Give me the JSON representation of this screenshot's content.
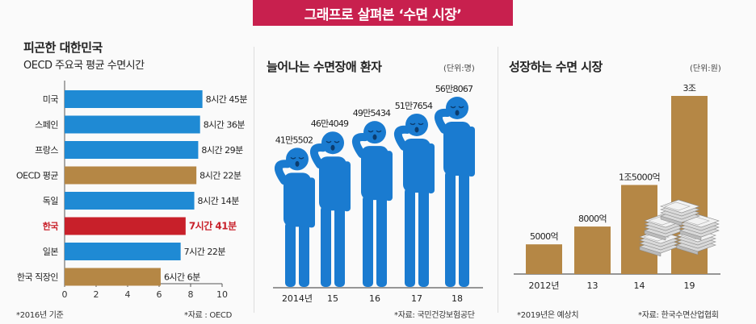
{
  "banner": {
    "title": "그래프로 살펴본 ‘수면 시장’"
  },
  "panels": {
    "left": {
      "title": "피곤한 대한민국",
      "subtitle": "OECD 주요국 평균 수면시간",
      "note": "*2016년 기준",
      "source": "*자료 : OECD"
    },
    "middle": {
      "title": "늘어나는 수면장애 환자",
      "unit": "(단위:명)",
      "source": "*자료: 국민건강보험공단"
    },
    "right": {
      "title": "성장하는 수면 시장",
      "unit": "(단위:원)",
      "note": "*2019년은 예상치",
      "source": "*자료: 한국수면산업협회"
    }
  },
  "colors": {
    "blue": "#1f8ad4",
    "gold": "#b58745",
    "red": "#c8202a",
    "banner": "#c8204e",
    "figure": "#1a7bd0"
  },
  "chart_data": [
    {
      "type": "bar",
      "orientation": "horizontal",
      "title": "피곤한 대한민국",
      "subtitle": "OECD 주요국 평균 수면시간",
      "categories": [
        "미국",
        "스페인",
        "프랑스",
        "OECD 평균",
        "독일",
        "한국",
        "일본",
        "한국 직장인"
      ],
      "values": [
        8.75,
        8.6,
        8.483,
        8.367,
        8.233,
        7.683,
        7.367,
        6.1
      ],
      "labels": [
        "8시간 45분",
        "8시간 36분",
        "8시간 29분",
        "8시간 22분",
        "8시간 14분",
        "7시간 41분",
        "7시간 22분",
        "6시간 6분"
      ],
      "bar_colors": [
        "blue",
        "blue",
        "blue",
        "gold",
        "blue",
        "red",
        "blue",
        "gold"
      ],
      "xlim": [
        0,
        10
      ],
      "xticks": [
        "0",
        "2",
        "4",
        "6",
        "8",
        "10"
      ]
    },
    {
      "type": "bar",
      "title": "늘어나는 수면장애 환자",
      "unit": "(단위:명)",
      "categories": [
        "2014년",
        "15",
        "16",
        "17",
        "18"
      ],
      "values": [
        415502,
        464049,
        495434,
        517654,
        568067
      ],
      "labels": [
        "41만5502",
        "46만4049",
        "49만5434",
        "51만7654",
        "56만8067"
      ]
    },
    {
      "type": "bar",
      "title": "성장하는 수면 시장",
      "unit": "(단위:원)",
      "categories": [
        "2012년",
        "13",
        "14",
        "19"
      ],
      "values": [
        5000,
        8000,
        15000,
        30000
      ],
      "value_unit": "억원",
      "labels": [
        "5000억",
        "8000억",
        "1조5000억",
        "3조"
      ]
    }
  ]
}
